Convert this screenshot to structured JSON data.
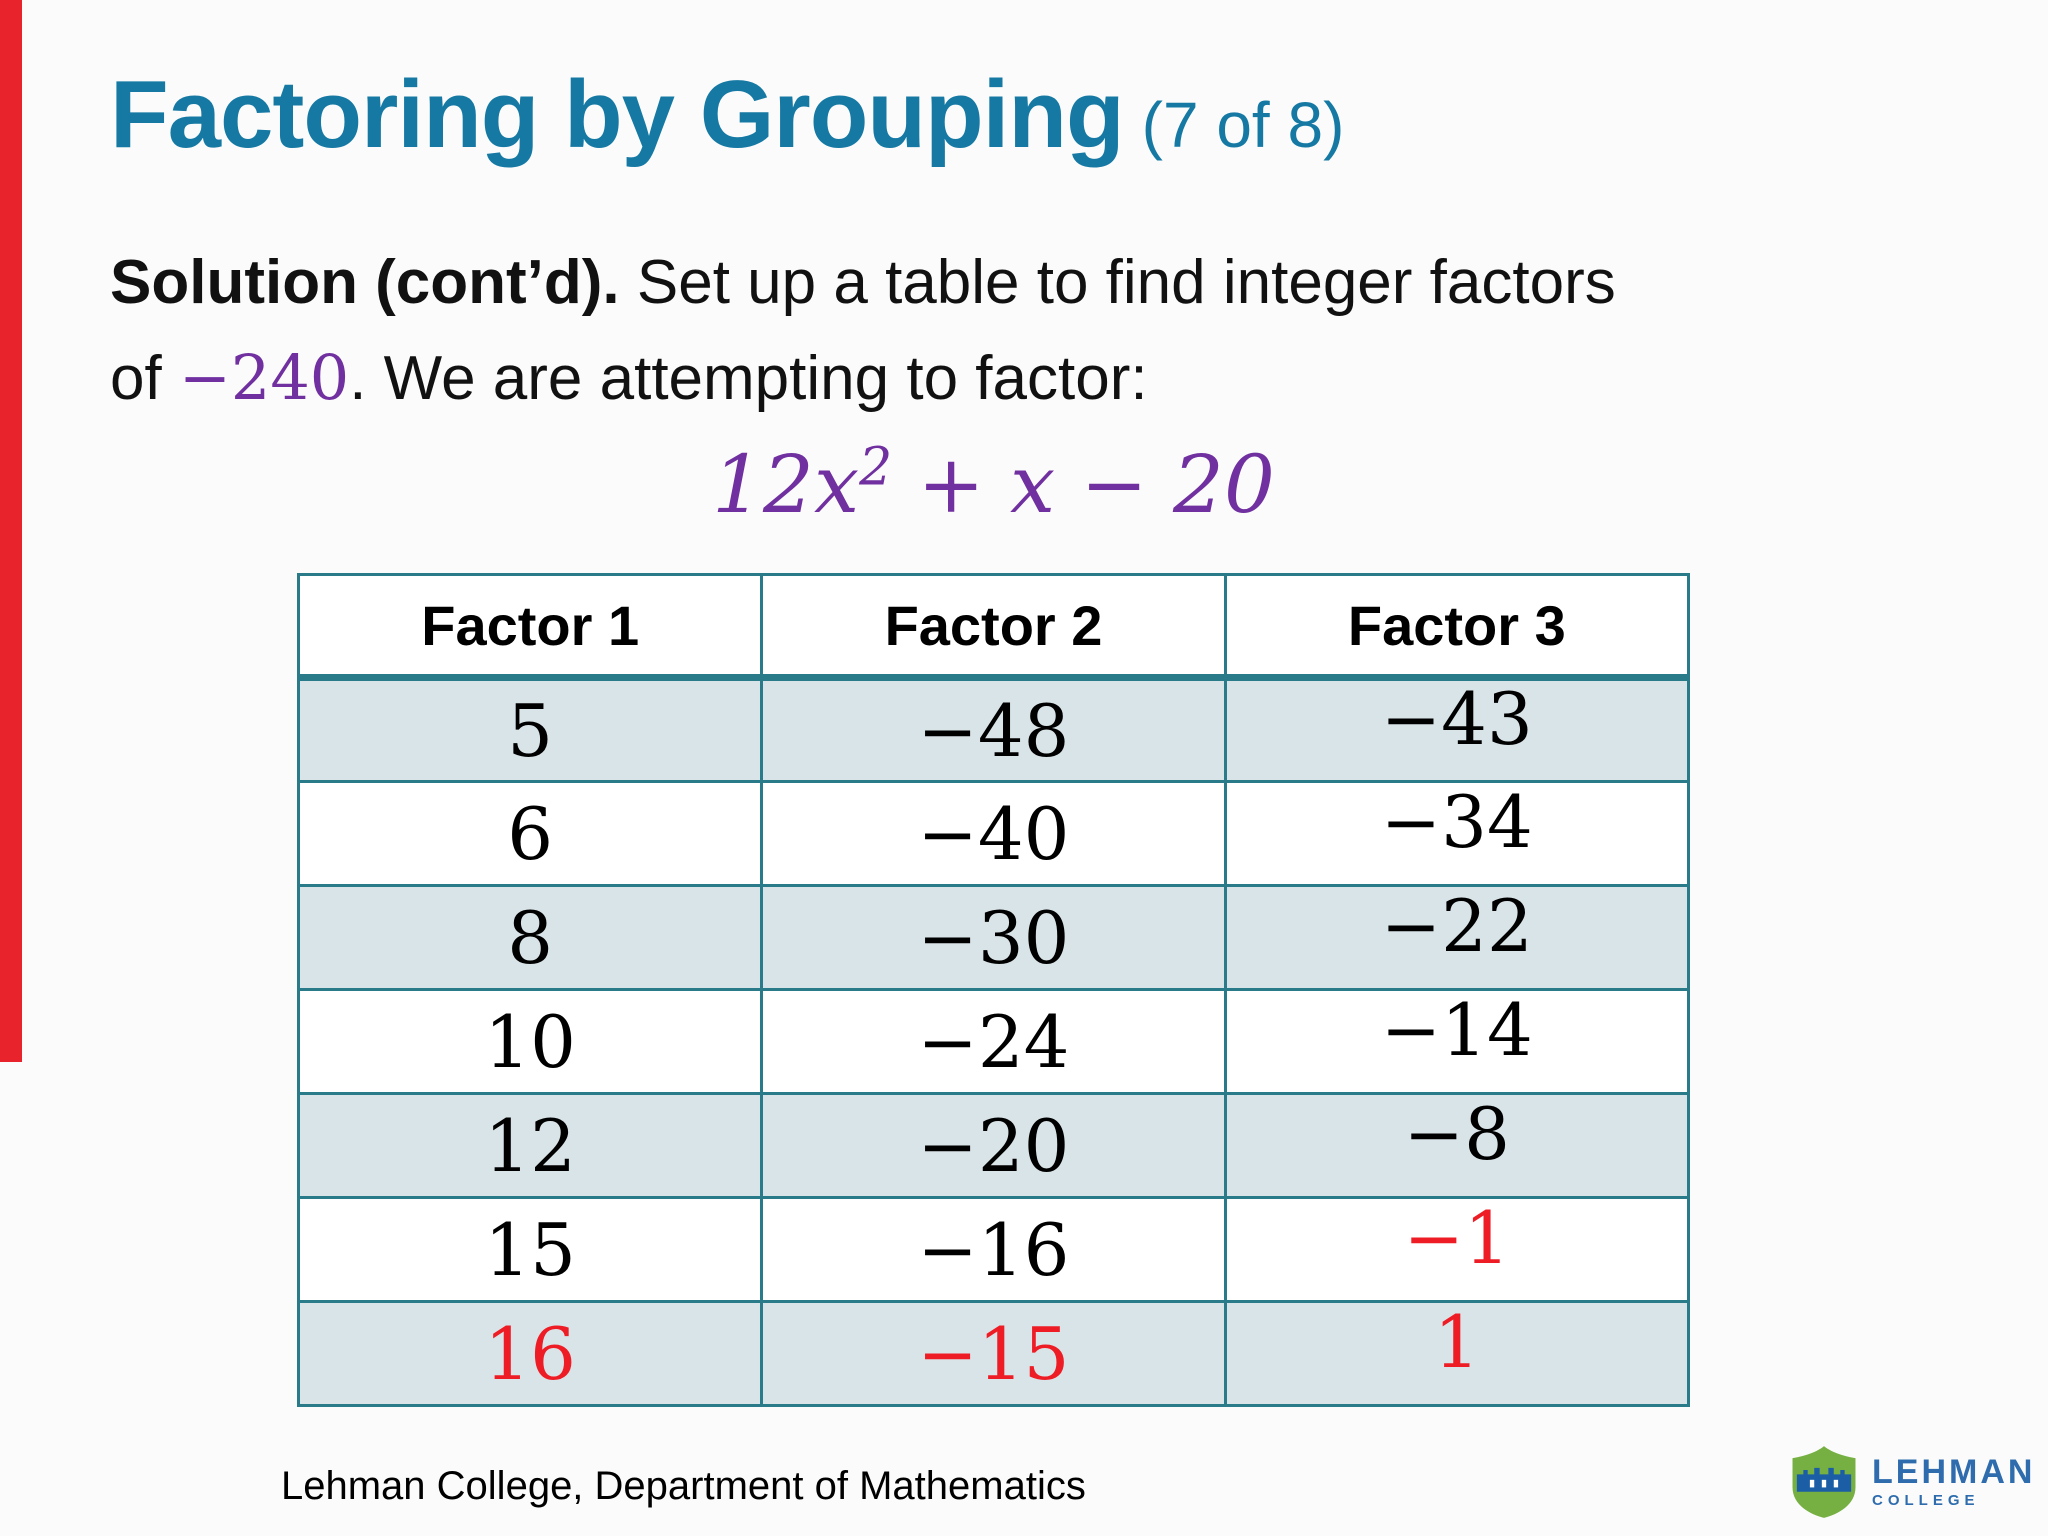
{
  "colors": {
    "teal-title": "#1579a4",
    "teal-border": "#2a7b8a",
    "row-shade": "#d9e4e8",
    "purple": "#7030a0",
    "red": "#ee1c25",
    "red-bar": "#e8232b",
    "logo-blue": "#2e6cae",
    "logo-green": "#76b043"
  },
  "header": {
    "title": "Factoring by Grouping",
    "title_suffix": "(7 of 8)"
  },
  "body": {
    "line1_bold": "Solution (cont’d).",
    "line1_rest": " Set up a table to find integer factors",
    "line2_prefix": "of ",
    "line2_math": "−240",
    "line2_rest": ". We are attempting to factor:",
    "formula_base": "12x",
    "formula_exponent": "2",
    "formula_rest": " + x − 20"
  },
  "table": {
    "headers": [
      "Factor 1",
      "Factor 2",
      "Factor 3"
    ],
    "rows": [
      {
        "shaded": true,
        "cells": [
          "5",
          "−48",
          "−43"
        ],
        "red": [
          false,
          false,
          false
        ]
      },
      {
        "shaded": false,
        "cells": [
          "6",
          "−40",
          "−34"
        ],
        "red": [
          false,
          false,
          false
        ]
      },
      {
        "shaded": true,
        "cells": [
          "8",
          "−30",
          "−22"
        ],
        "red": [
          false,
          false,
          false
        ]
      },
      {
        "shaded": false,
        "cells": [
          "10",
          "−24",
          "−14"
        ],
        "red": [
          false,
          false,
          false
        ]
      },
      {
        "shaded": true,
        "cells": [
          "12",
          "−20",
          "−8"
        ],
        "red": [
          false,
          false,
          false
        ]
      },
      {
        "shaded": false,
        "cells": [
          "15",
          "−16",
          "−1"
        ],
        "red": [
          false,
          false,
          true
        ]
      },
      {
        "shaded": true,
        "cells": [
          "16",
          "−15",
          "1"
        ],
        "red": [
          true,
          true,
          true
        ]
      }
    ]
  },
  "footer": {
    "text": "Lehman College, Department of Mathematics"
  },
  "logo": {
    "line1": "LEHMAN",
    "line2": "COLLEGE"
  }
}
